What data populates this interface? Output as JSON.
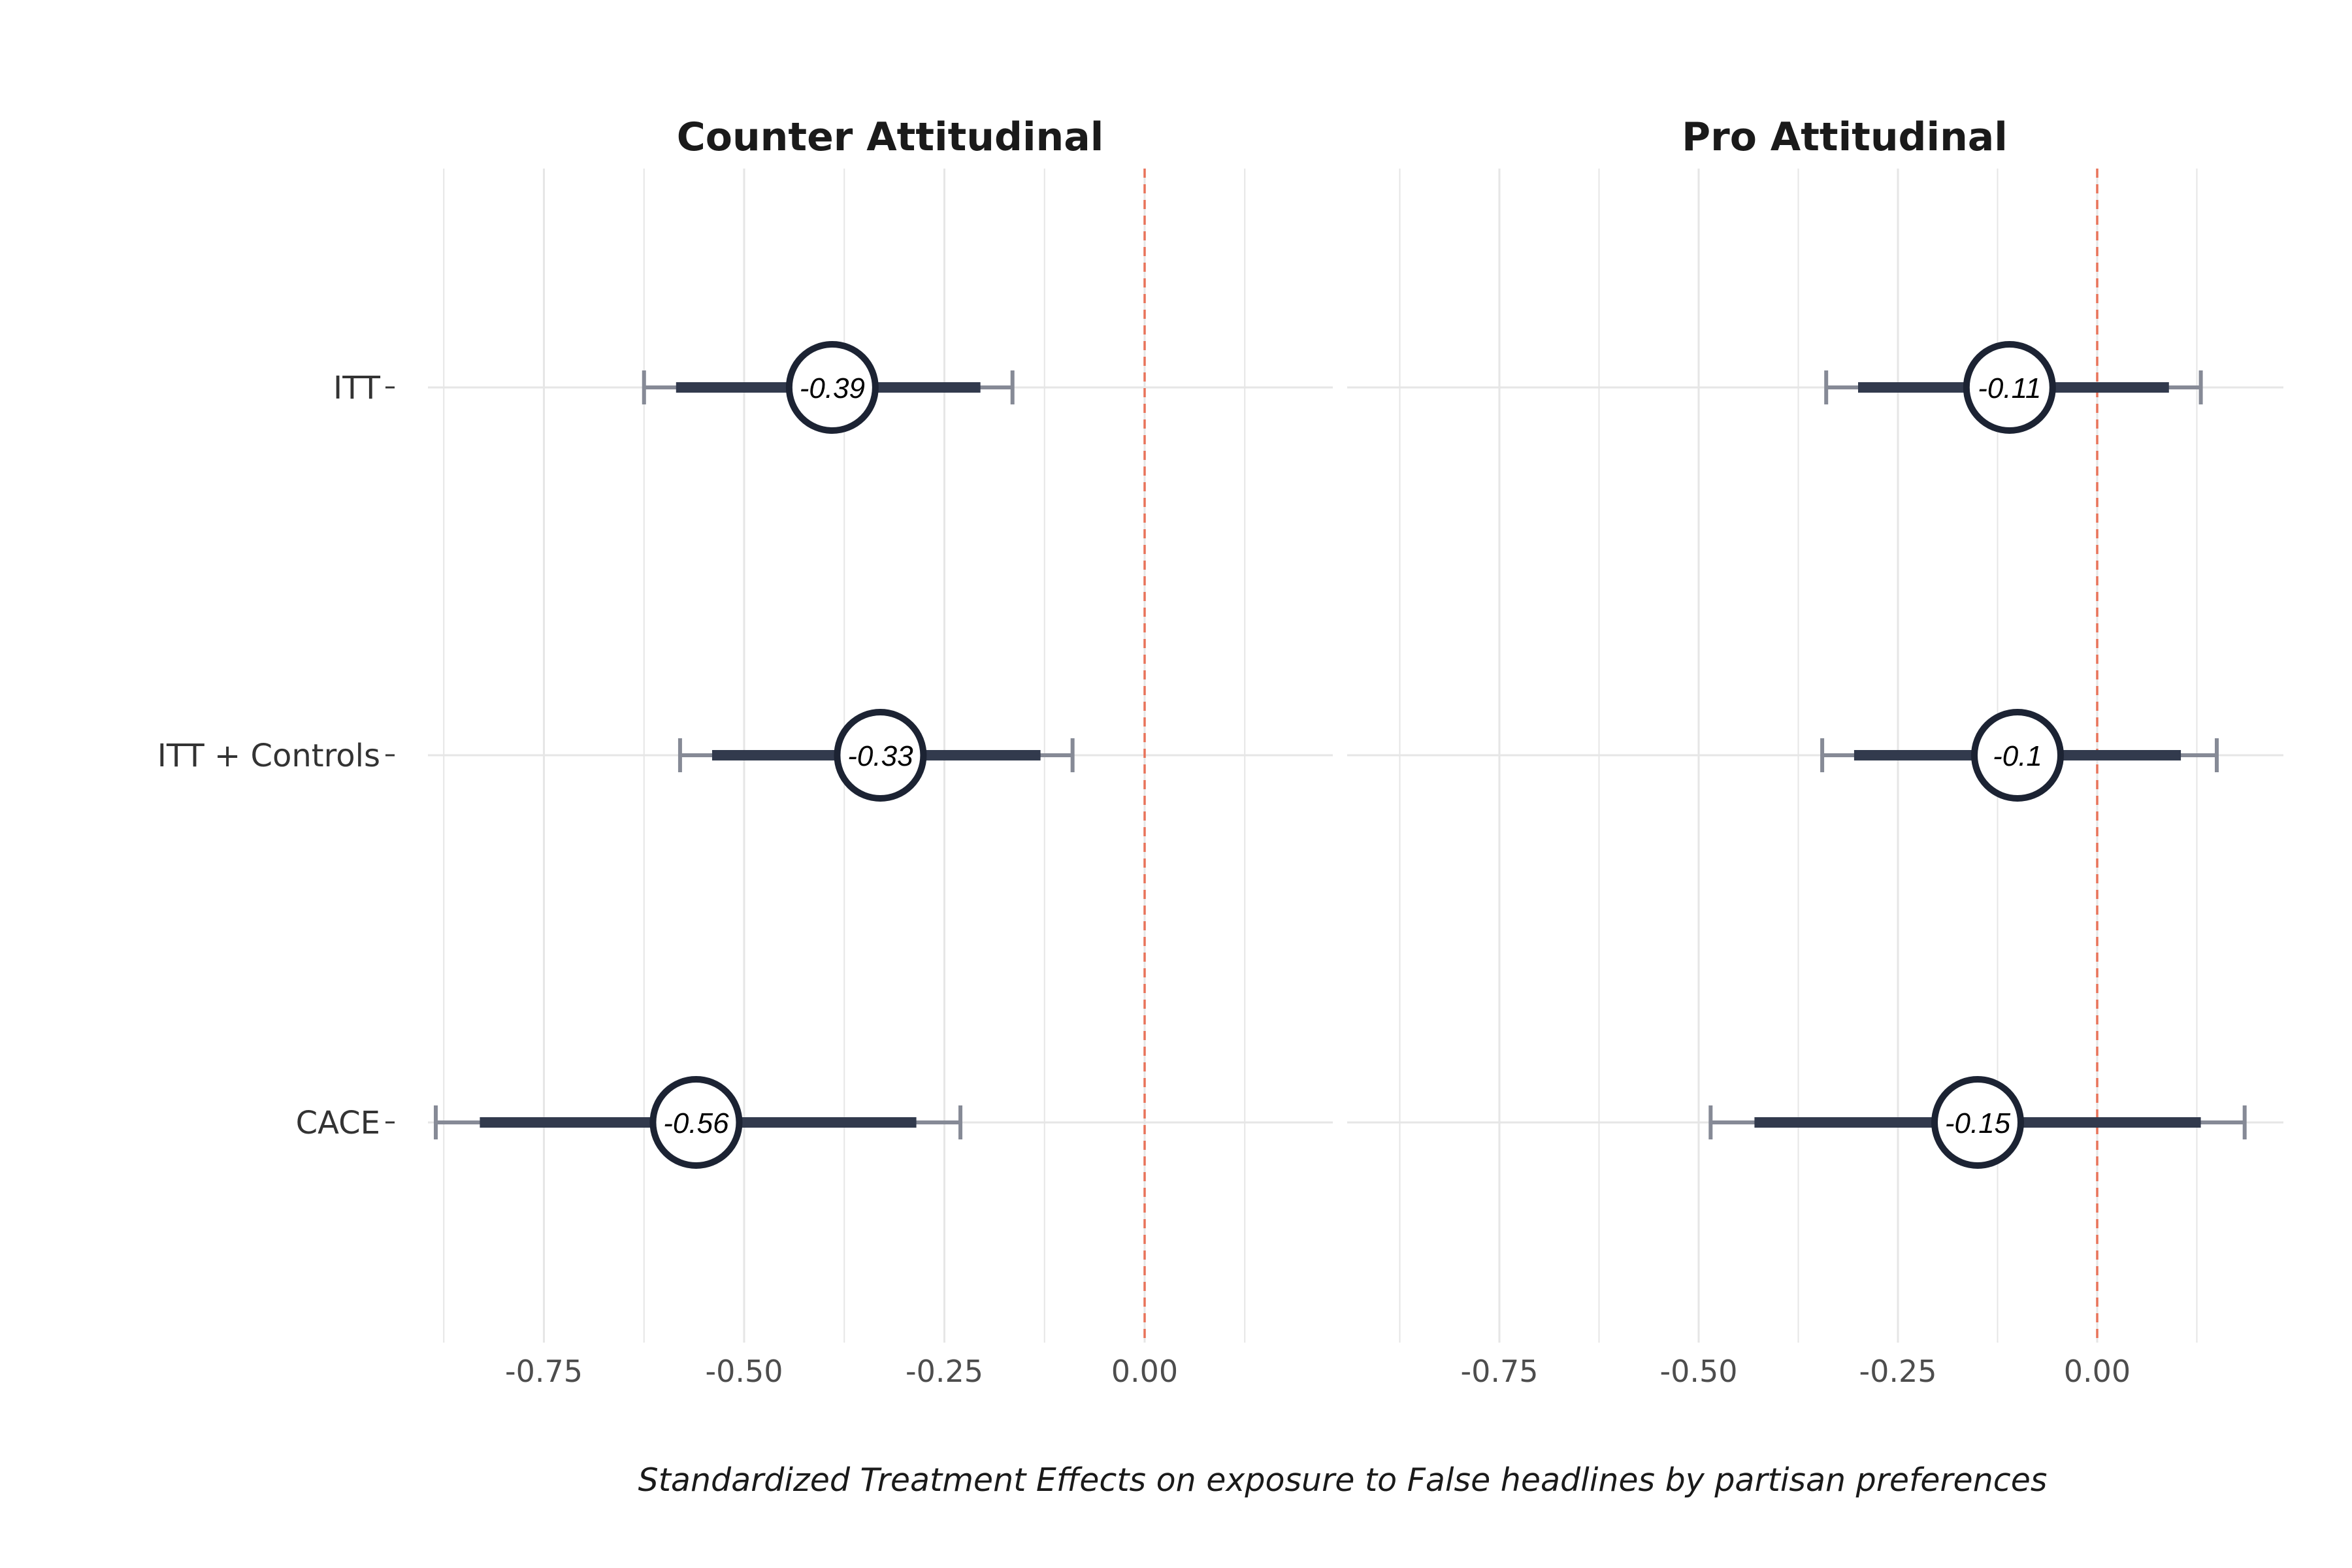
{
  "chart_data": {
    "type": "forest",
    "x_caption": "Standardized Treatment Effects on exposure to False headlines by partisan preferences",
    "categories": [
      "ITT",
      "ITT + Controls",
      "CACE"
    ],
    "x_ticks": [
      -0.75,
      -0.5,
      -0.25,
      0.0
    ],
    "x_tick_labels": [
      "-0.75",
      "-0.50",
      "-0.25",
      "0.00"
    ],
    "xlim": [
      -0.9,
      0.23
    ],
    "reference_line": 0,
    "grid": true,
    "colors": {
      "estimate_ring": "#1c2333",
      "ci_thick": "#323a4d",
      "ci_thin": "#868a96",
      "reference": "#e8735a",
      "grid": "#e6e6e6"
    },
    "panels": [
      {
        "title": "Counter Attitudinal",
        "estimates": [
          {
            "category": "ITT",
            "estimate": -0.39,
            "label": "-0.39",
            "ci_inner": [
              -0.585,
              -0.205
            ],
            "ci_outer": [
              -0.625,
              -0.165
            ]
          },
          {
            "category": "ITT + Controls",
            "estimate": -0.33,
            "label": "-0.33",
            "ci_inner": [
              -0.54,
              -0.13
            ],
            "ci_outer": [
              -0.58,
              -0.09
            ]
          },
          {
            "category": "CACE",
            "estimate": -0.56,
            "label": "-0.56",
            "ci_inner": [
              -0.83,
              -0.285
            ],
            "ci_outer": [
              -0.885,
              -0.23
            ]
          }
        ]
      },
      {
        "title": "Pro Attitudinal",
        "estimates": [
          {
            "category": "ITT",
            "estimate": -0.11,
            "label": "-0.11",
            "ci_inner": [
              -0.3,
              0.09
            ],
            "ci_outer": [
              -0.34,
              0.13
            ]
          },
          {
            "category": "ITT + Controls",
            "estimate": -0.1,
            "label": "-0.1",
            "ci_inner": [
              -0.305,
              0.105
            ],
            "ci_outer": [
              -0.345,
              0.15
            ]
          },
          {
            "category": "CACE",
            "estimate": -0.15,
            "label": "-0.15",
            "ci_inner": [
              -0.43,
              0.13
            ],
            "ci_outer": [
              -0.485,
              0.185
            ]
          }
        ]
      }
    ]
  }
}
